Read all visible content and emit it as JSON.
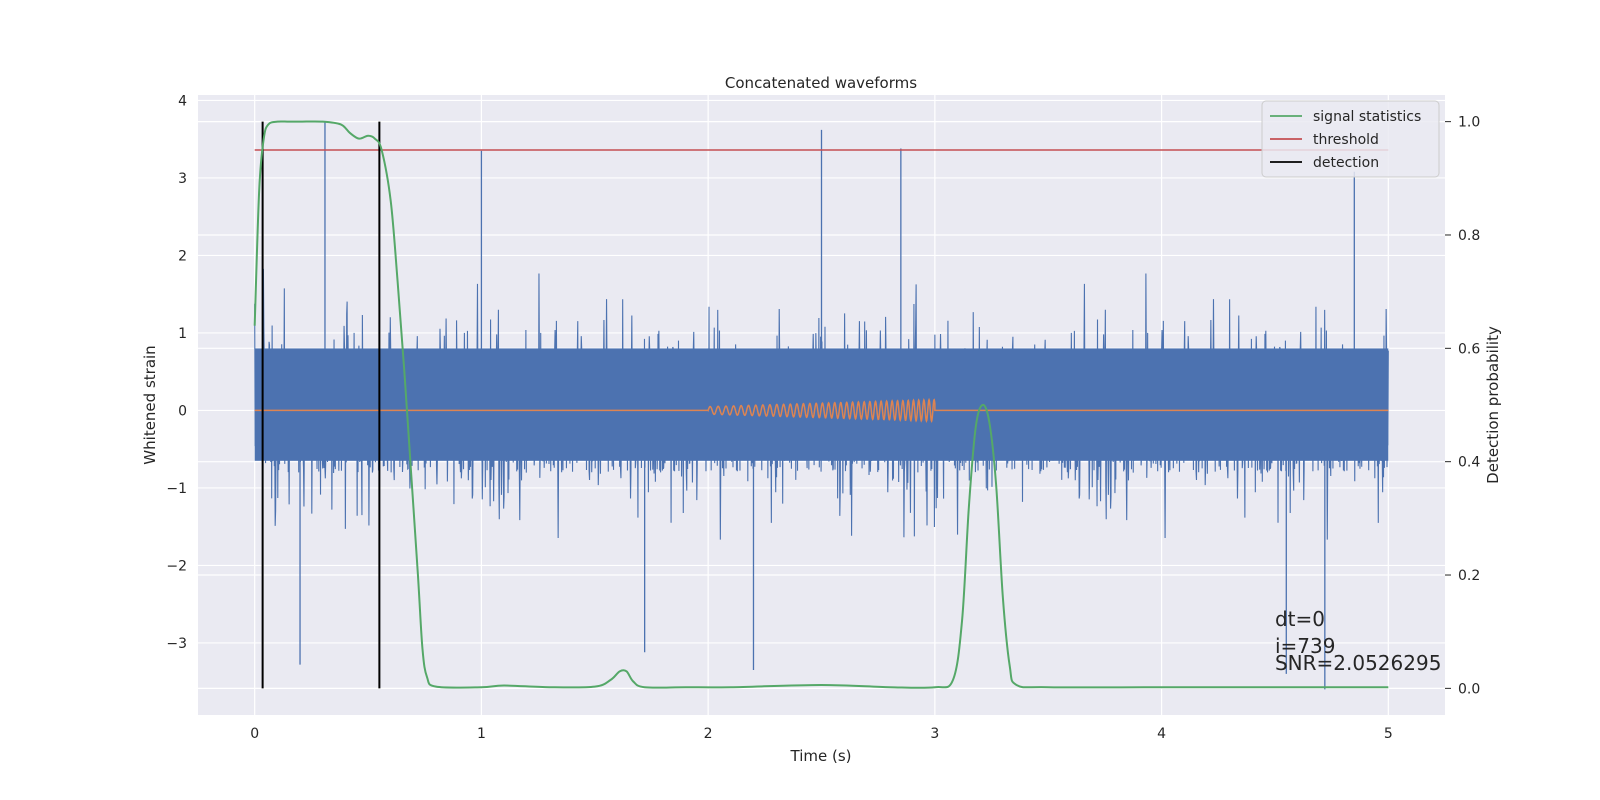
{
  "chart_data": {
    "type": "line",
    "title": "Concatenated waveforms",
    "xlabel": "Time (s)",
    "ylabel": "Whitened strain",
    "y2label": "Detection probability",
    "xlim": [
      -0.25,
      5.25
    ],
    "ylim": [
      -3.93,
      4.07
    ],
    "y2lim": [
      -0.047,
      1.047
    ],
    "x_ticks": [
      0,
      1,
      2,
      3,
      4,
      5
    ],
    "x_tick_labels": [
      "0",
      "1",
      "2",
      "3",
      "4",
      "5"
    ],
    "y_ticks": [
      4,
      3,
      2,
      1,
      0,
      -1,
      -2,
      -3
    ],
    "y_tick_labels": [
      "4",
      "3",
      "2",
      "1",
      "0",
      "−1",
      "−2",
      "−3"
    ],
    "y2_ticks": [
      1.0,
      0.8,
      0.6,
      0.4,
      0.2,
      0.0
    ],
    "y2_tick_labels": [
      "1.0",
      "0.8",
      "0.6",
      "0.4",
      "0.2",
      "0.0"
    ],
    "grid": true,
    "legend_position": "top-right",
    "series": [
      {
        "color": "#4c72b0",
        "axis": "left",
        "description": "noisy whitened strain, 0 to 5 s",
        "x_range": [
          0,
          5
        ],
        "core_band": [
          -0.65,
          0.8
        ],
        "extreme_peaks": [
          {
            "x": 0.31,
            "y": 3.72
          },
          {
            "x": 1.0,
            "y": 3.35
          },
          {
            "x": 2.5,
            "y": 3.62
          },
          {
            "x": 2.85,
            "y": 3.38
          },
          {
            "x": 4.85,
            "y": 3.08
          },
          {
            "x": 0.2,
            "y": -3.28
          },
          {
            "x": 1.72,
            "y": -3.12
          },
          {
            "x": 2.2,
            "y": -3.35
          },
          {
            "x": 4.55,
            "y": -3.4
          },
          {
            "x": 4.72,
            "y": -3.6
          }
        ]
      },
      {
        "color": "#dd8452",
        "axis": "left",
        "description": "injected waveform",
        "x": [
          0,
          2.0,
          3.0,
          5
        ],
        "y": [
          0,
          0,
          0,
          0
        ],
        "chirp": {
          "t_start": 2.0,
          "t_end": 3.0,
          "amplitude_end": 0.14,
          "cycles": 28
        }
      },
      {
        "name": "signal statistics",
        "color": "#55a868",
        "axis": "right",
        "x": [
          0,
          0.02,
          0.04,
          0.06,
          0.1,
          0.15,
          0.2,
          0.3,
          0.38,
          0.42,
          0.46,
          0.5,
          0.53,
          0.56,
          0.6,
          0.63,
          0.66,
          0.69,
          0.72,
          0.74,
          0.76,
          0.8,
          1.0,
          1.1,
          1.3,
          1.5,
          1.57,
          1.61,
          1.64,
          1.67,
          1.72,
          1.9,
          2.1,
          2.5,
          2.8,
          3.0,
          3.08,
          3.12,
          3.15,
          3.18,
          3.21,
          3.24,
          3.27,
          3.3,
          3.33,
          3.36,
          3.5,
          4.0,
          4.5,
          5.0
        ],
        "y": [
          0.64,
          0.88,
          0.97,
          0.995,
          1.0,
          1.0,
          1.0,
          1.0,
          0.995,
          0.98,
          0.97,
          0.975,
          0.97,
          0.95,
          0.86,
          0.72,
          0.56,
          0.38,
          0.2,
          0.07,
          0.02,
          0.003,
          0.002,
          0.005,
          0.002,
          0.003,
          0.015,
          0.03,
          0.03,
          0.012,
          0.002,
          0.002,
          0.002,
          0.006,
          0.002,
          0.002,
          0.015,
          0.12,
          0.32,
          0.46,
          0.5,
          0.47,
          0.36,
          0.16,
          0.04,
          0.006,
          0.002,
          0.002,
          0.002,
          0.002
        ]
      },
      {
        "name": "threshold",
        "color": "#c44e52",
        "axis": "right",
        "x": [
          0,
          5
        ],
        "y": [
          0.95,
          0.95
        ]
      },
      {
        "name": "detection",
        "color": "#000000",
        "axis": "right",
        "type": "vlines",
        "x": [
          0.035,
          0.55
        ],
        "y_range": [
          0.0,
          1.0
        ]
      }
    ],
    "legend": [
      "signal statistics",
      "threshold",
      "detection"
    ],
    "annotations": [
      {
        "text": "dt=0",
        "x": 4.5,
        "y": -2.78
      },
      {
        "text": "i=739",
        "x": 4.5,
        "y": -3.13
      },
      {
        "text": "SNR=2.0526295",
        "x": 4.5,
        "y": -3.35
      }
    ]
  }
}
